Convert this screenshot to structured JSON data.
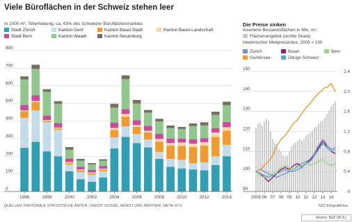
{
  "title": "Viele Büroflächen in der Schweiz stehen leer",
  "subtitle": "In 1000 m²; Teilerhebung; ca. 43% des Schweizer Büroflächenmarktes",
  "right_title": "Die Preise sinken",
  "right_subtitle1": "Inserierte Bestandsflächen in Mio. m²;",
  "right_subtitle2": "Flächenangebot (rechte Skala)",
  "right_subtitle3": "Hedonischer Mietpreisindex: 2005 = 100",
  "source": "QUELLEN: KANTONALE STATISTISCHE ÄMTER, CREDIT SUISSE, WÜEST UND PARTNER, META-SYS",
  "credit": "NZZ-Infografik/lea.",
  "source_box": "Source: NZZ (25.8.)",
  "colors": {
    "zuerich": "#2e9fb5",
    "genf": "#c2dde9",
    "basel_stadt": "#f29a2e",
    "basel_land": "#f9d8a8",
    "bern": "#cc4a9c",
    "waadt": "#8fc78c",
    "neuenburg": "#776f63",
    "index_zuerich": "#7f8fd6",
    "index_basel": "#8b2463",
    "index_bern": "#9bcf8c",
    "index_genfersee": "#f29a2e",
    "index_uebrige": "#5aa8c8",
    "supply_bars": "#c8c8c8"
  },
  "chart_data": [
    {
      "type": "bar",
      "stacked": true,
      "title": "Viele Büroflächen in der Schweiz stehen leer",
      "ylabel": "In 1000 m²",
      "ylim": [
        0,
        800
      ],
      "yticks": [
        0,
        100,
        200,
        300,
        400,
        500,
        600,
        700,
        800
      ],
      "grid": true,
      "legend_position": "top",
      "categories": [
        "1996",
        "1997",
        "1998",
        "1999",
        "2000",
        "2001",
        "2002",
        "2003",
        "2004",
        "2005",
        "2006",
        "2007",
        "2008",
        "2009",
        "2010",
        "2011",
        "2012",
        "2013",
        "2014"
      ],
      "xtick_labels": [
        "1996",
        "1998",
        "2000",
        "2002",
        "2004",
        "2006",
        "2008",
        "2010",
        "2012",
        "2014"
      ],
      "series": [
        {
          "name": "Stadt Zürich",
          "color_key": "zuerich",
          "values": [
            248,
            282,
            228,
            200,
            115,
            70,
            55,
            80,
            245,
            310,
            275,
            250,
            185,
            140,
            130,
            125,
            120,
            150,
            200
          ]
        },
        {
          "name": "Kanton Genf",
          "color_key": "genf",
          "values": [
            170,
            178,
            165,
            150,
            38,
            40,
            40,
            35,
            62,
            60,
            52,
            45,
            40,
            45,
            50,
            35,
            45,
            50,
            65
          ]
        },
        {
          "name": "Kanton Basel-Stadt",
          "color_key": "basel_stadt",
          "values": [
            38,
            48,
            8,
            8,
            8,
            10,
            8,
            10,
            42,
            55,
            40,
            40,
            58,
            75,
            78,
            92,
            95,
            110,
            80
          ]
        },
        {
          "name": "Kanton Basel-Landschaft",
          "color_key": "basel_land",
          "values": [
            5,
            6,
            5,
            5,
            6,
            5,
            5,
            5,
            12,
            15,
            10,
            10,
            15,
            15,
            20,
            20,
            20,
            25,
            20
          ]
        },
        {
          "name": "Stadt Bern",
          "color_key": "bern",
          "values": [
            30,
            32,
            25,
            25,
            20,
            15,
            15,
            15,
            30,
            28,
            28,
            28,
            30,
            25,
            22,
            25,
            23,
            25,
            30
          ]
        },
        {
          "name": "Kanton Waadt",
          "color_key": "waadt",
          "values": [
            145,
            150,
            135,
            110,
            50,
            35,
            30,
            30,
            85,
            170,
            95,
            75,
            70,
            60,
            55,
            75,
            72,
            75,
            95
          ]
        },
        {
          "name": "Kanton Neuenburg",
          "color_key": "neuenburg",
          "values": [
            18,
            24,
            15,
            15,
            15,
            10,
            8,
            8,
            22,
            22,
            20,
            15,
            15,
            15,
            12,
            15,
            18,
            18,
            20
          ]
        }
      ],
      "x_range": [
        1996,
        2014
      ]
    },
    {
      "type": "line",
      "title": "Die Preise sinken",
      "ylabel": "Hedonischer Mietpreisindex: 2005 = 100",
      "ylim": [
        90,
        150
      ],
      "yticks": [
        90,
        100,
        110,
        120,
        130,
        140,
        150
      ],
      "y2lim": [
        0,
        2.4
      ],
      "y2ticks": [
        "0",
        "0,4",
        "0,8",
        "1,2",
        "1,6",
        "2,0",
        "2,4"
      ],
      "y2label": "Inserierte Bestandsflächen in Mio. m²",
      "xlim": [
        2005,
        2014.75
      ],
      "xtick_labels": [
        "2005",
        "06",
        "07",
        "08",
        "09",
        "10",
        "11",
        "12",
        "13",
        "14"
      ],
      "legend_position": "top",
      "grid": true,
      "supply_bars": {
        "name": "Flächenangebot (rechte Skala)",
        "color_key": "supply_bars",
        "x": [
          2005.0,
          2005.25,
          2005.5,
          2005.75,
          2006.0,
          2006.25,
          2006.5,
          2006.75,
          2007.0,
          2007.25,
          2007.5,
          2007.75,
          2008.0,
          2008.25,
          2008.5,
          2008.75,
          2009.0,
          2009.25,
          2009.5,
          2009.75,
          2010.0,
          2010.25,
          2010.5,
          2010.75,
          2011.0,
          2011.25,
          2011.5,
          2011.75,
          2012.0,
          2012.25,
          2012.5,
          2012.75,
          2013.0,
          2013.25,
          2013.5,
          2013.75,
          2014.0,
          2014.25,
          2014.5
        ],
        "values": [
          1.28,
          1.35,
          1.38,
          1.32,
          1.4,
          1.45,
          1.42,
          1.2,
          1.05,
          0.98,
          0.95,
          0.85,
          0.8,
          0.72,
          0.7,
          0.72,
          0.8,
          0.9,
          0.95,
          0.98,
          1.02,
          1.05,
          1.02,
          1.05,
          1.12,
          1.15,
          1.18,
          1.22,
          1.28,
          1.3,
          1.35,
          1.4,
          1.42,
          1.48,
          1.55,
          1.62,
          1.7,
          1.75,
          1.8
        ]
      },
      "series": [
        {
          "name": "Zürich",
          "color_key": "index_zuerich",
          "x": [
            2005,
            2005.5,
            2006,
            2006.5,
            2007,
            2007.5,
            2008,
            2008.5,
            2009,
            2009.5,
            2010,
            2010.5,
            2011,
            2011.5,
            2012,
            2012.5,
            2013,
            2013.25,
            2013.5,
            2014,
            2014.5
          ],
          "values": [
            100,
            101,
            100,
            99,
            98,
            97,
            98,
            99,
            100,
            101,
            103,
            104,
            105,
            106,
            109,
            113,
            116,
            115,
            113,
            111,
            112
          ]
        },
        {
          "name": "Basel",
          "color_key": "index_basel",
          "x": [
            2005,
            2005.5,
            2006,
            2006.5,
            2007,
            2007.5,
            2008,
            2008.5,
            2009,
            2009.5,
            2010,
            2010.5,
            2011,
            2011.5,
            2012,
            2012.5,
            2013,
            2013.25,
            2013.5,
            2014,
            2014.5
          ],
          "values": [
            100,
            99,
            97,
            95,
            97,
            99,
            101,
            102,
            101,
            103,
            104,
            102,
            104,
            106,
            108,
            112,
            115,
            114,
            112,
            110,
            109
          ]
        },
        {
          "name": "Bern",
          "color_key": "index_bern",
          "x": [
            2005,
            2005.5,
            2006,
            2006.5,
            2007,
            2007.5,
            2008,
            2008.5,
            2009,
            2009.5,
            2010,
            2010.5,
            2011,
            2011.5,
            2012,
            2012.5,
            2013,
            2013.25,
            2013.5,
            2014,
            2014.5
          ],
          "values": [
            100,
            98,
            97,
            98,
            99,
            100,
            102,
            103,
            102,
            101,
            102,
            103,
            104,
            103,
            104,
            105,
            106,
            105,
            104,
            103,
            104
          ]
        },
        {
          "name": "Genfersee",
          "color_key": "index_genfersee",
          "x": [
            2005,
            2005.5,
            2006,
            2006.5,
            2007,
            2007.5,
            2008,
            2008.5,
            2009,
            2009.5,
            2010,
            2010.5,
            2011,
            2011.5,
            2012,
            2012.5,
            2013,
            2013.25,
            2013.5,
            2013.75,
            2014,
            2014.25,
            2014.5
          ],
          "values": [
            100,
            101,
            103,
            105,
            108,
            113,
            116,
            118,
            121,
            124,
            126,
            129,
            132,
            134,
            137,
            139,
            141,
            142,
            142,
            143,
            144,
            142,
            140
          ]
        },
        {
          "name": "Übrige Schweiz",
          "color_key": "index_uebrige",
          "x": [
            2005,
            2005.5,
            2006,
            2006.5,
            2007,
            2007.5,
            2008,
            2008.5,
            2009,
            2009.5,
            2010,
            2010.5,
            2011,
            2011.5,
            2012,
            2012.5,
            2013,
            2013.25,
            2013.5,
            2014,
            2014.5
          ],
          "values": [
            100,
            99,
            98,
            97,
            98,
            99,
            100,
            101,
            100,
            100,
            101,
            102,
            104,
            105,
            108,
            111,
            114,
            113,
            112,
            110,
            111
          ]
        }
      ]
    }
  ]
}
